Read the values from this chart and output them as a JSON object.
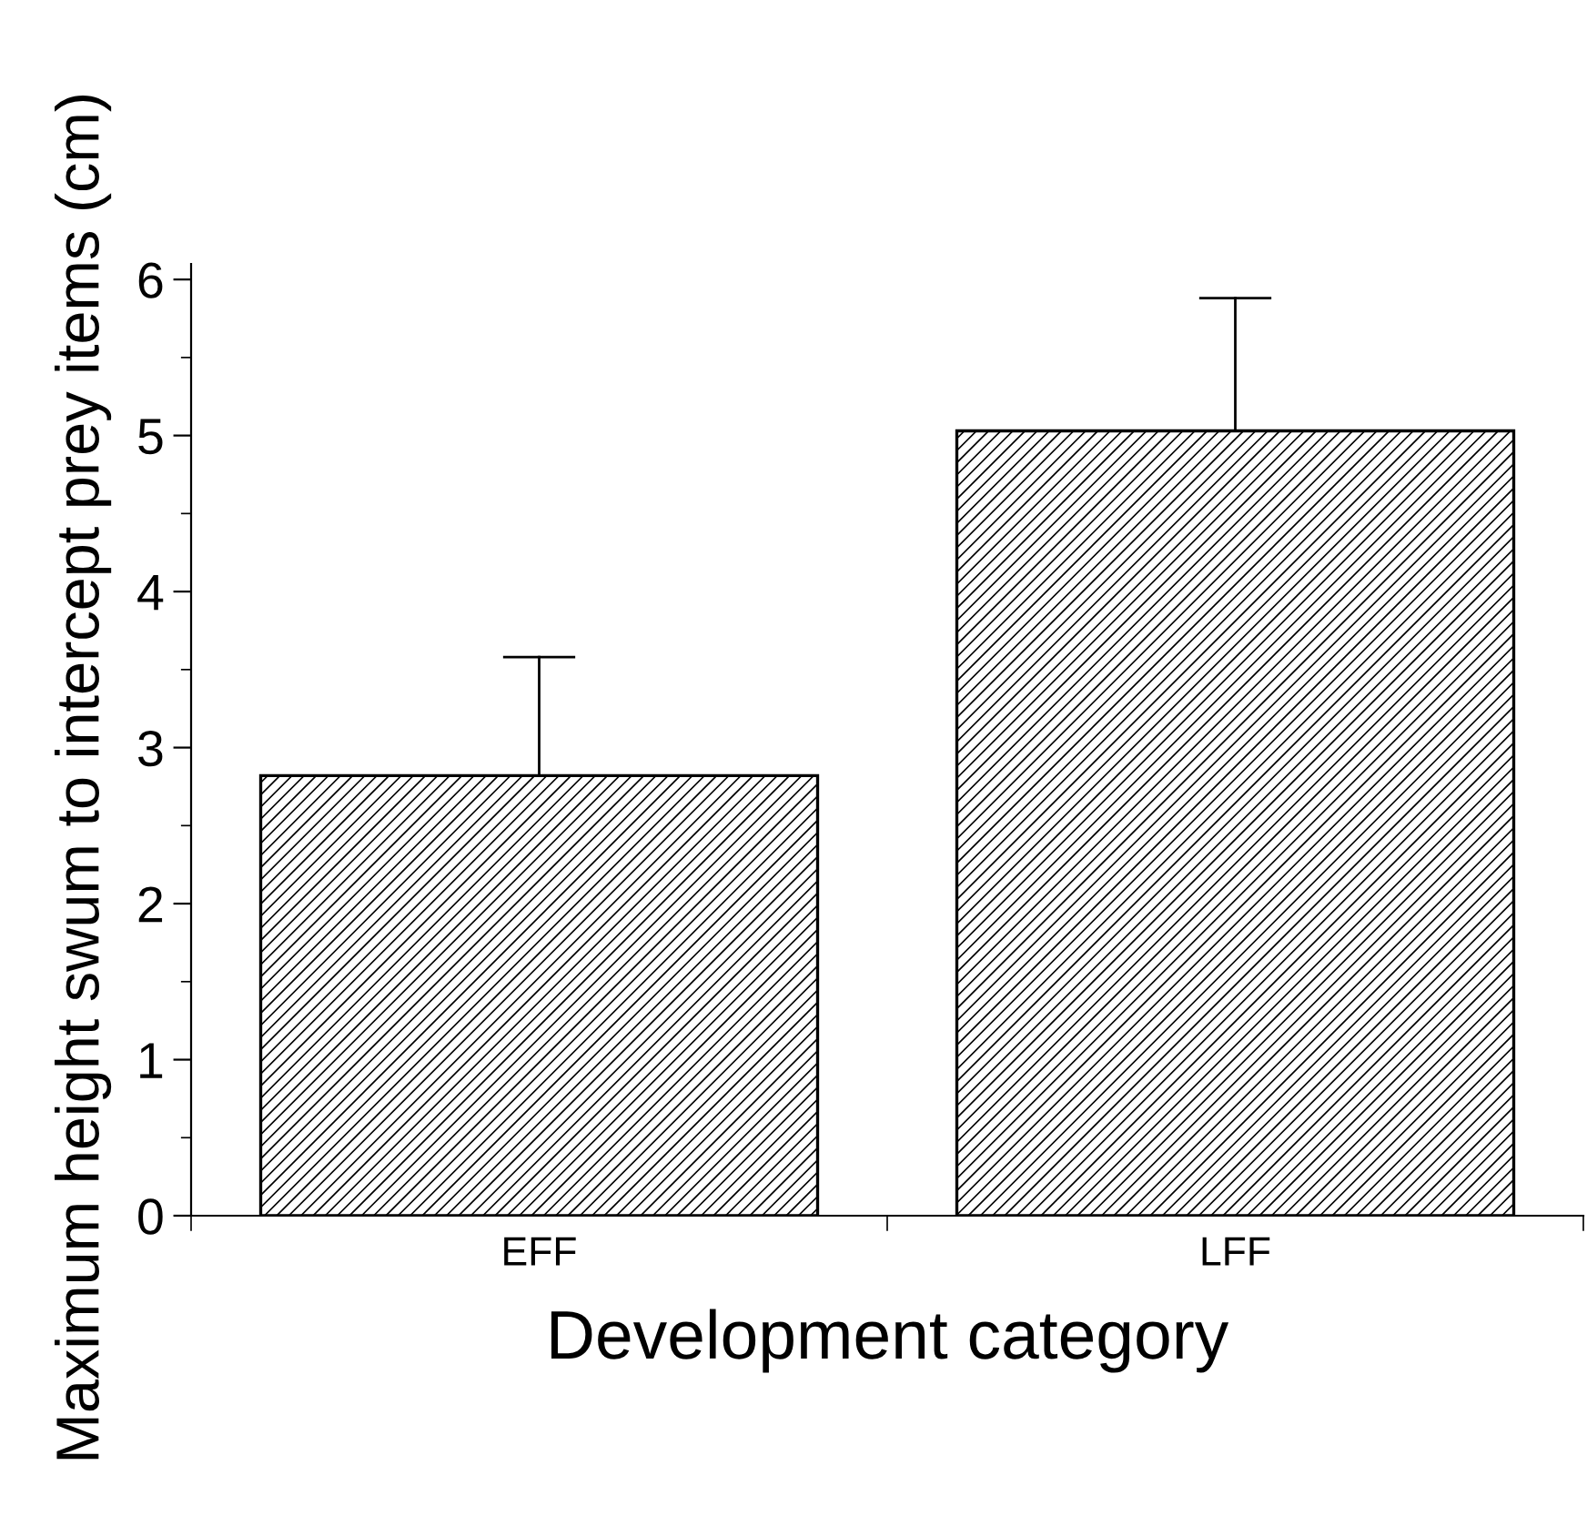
{
  "chart_data": {
    "type": "bar",
    "xlabel": "Development category",
    "ylabel": "Maximum height swum to intercept prey items (cm)",
    "categories": [
      "EFF",
      "LFF"
    ],
    "series": [
      {
        "color": "#000000",
        "values": [
          2.82,
          5.03
        ],
        "errors": [
          [
            2.82,
            3.58
          ],
          [
            5.03,
            5.88
          ]
        ]
      }
    ],
    "ylim": [
      0,
      6.1
    ],
    "yticks": [
      0,
      1,
      2,
      3,
      4,
      5,
      6
    ],
    "grid": false,
    "legend": false
  }
}
